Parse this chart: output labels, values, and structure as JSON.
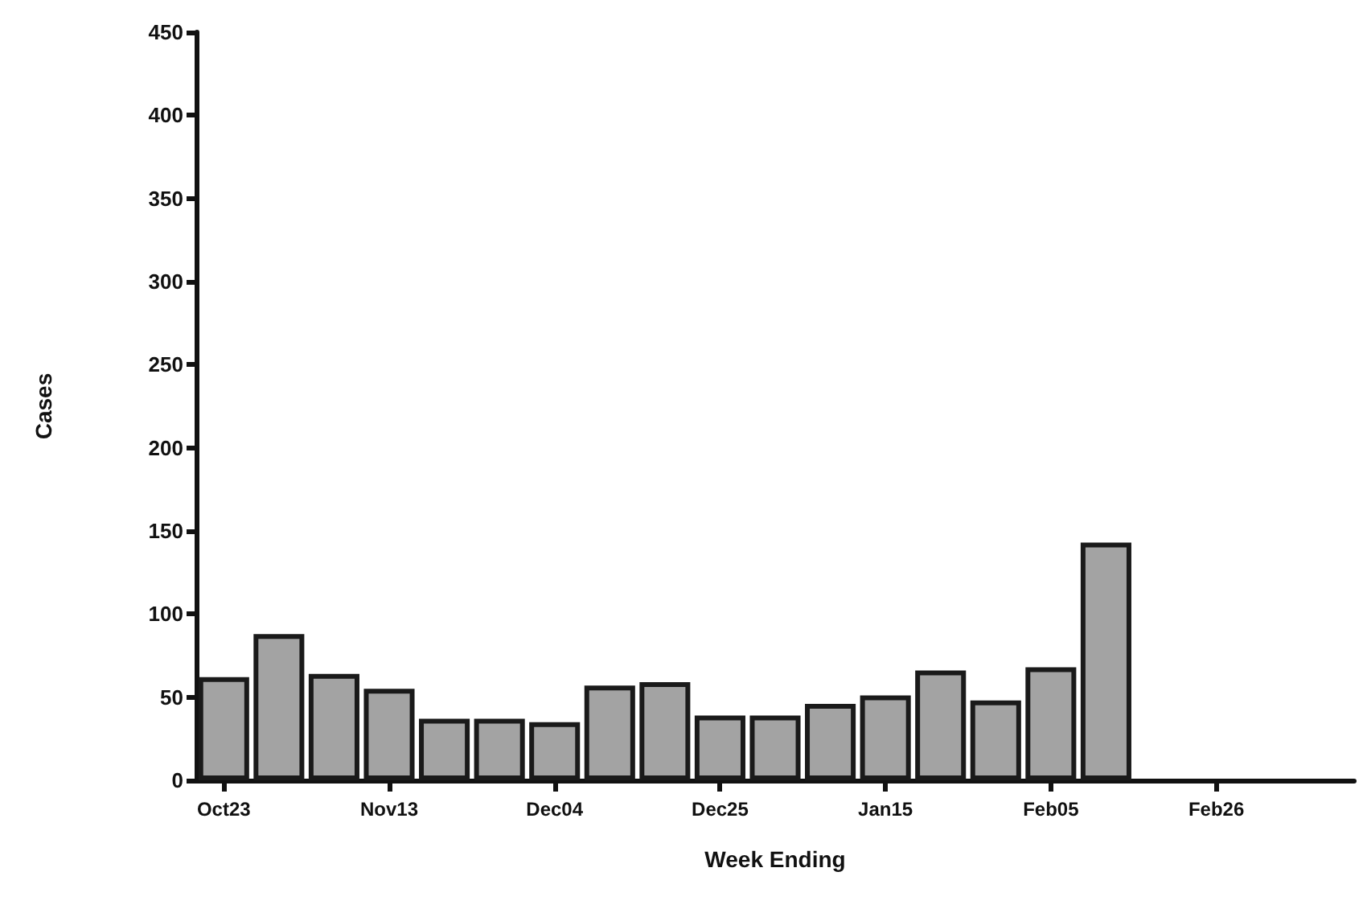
{
  "chart_data": {
    "type": "bar",
    "xlabel": "Week Ending",
    "ylabel": "Cases",
    "categories": [
      "Oct23",
      null,
      null,
      "Nov13",
      null,
      null,
      "Dec04",
      null,
      null,
      "Dec25",
      null,
      null,
      "Jan15",
      null,
      null,
      "Feb05",
      null,
      null,
      "Feb26",
      null,
      null
    ],
    "values": [
      62,
      88,
      64,
      55,
      37,
      37,
      35,
      57,
      59,
      39,
      39,
      46,
      51,
      66,
      48,
      68,
      143,
      null,
      null,
      null,
      null
    ],
    "color": "#a3a3a3",
    "ylim": [
      0,
      450
    ],
    "yticks": [
      0,
      50,
      100,
      150,
      200,
      250,
      300,
      350,
      400,
      450
    ],
    "grid": false
  }
}
